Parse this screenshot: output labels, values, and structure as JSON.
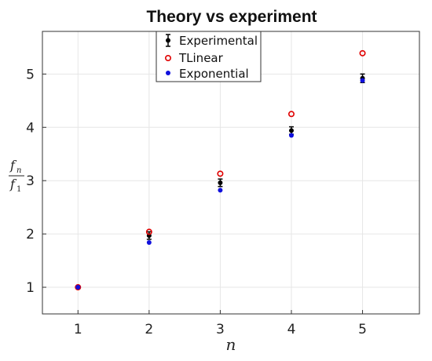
{
  "chart_data": {
    "type": "scatter",
    "title": "Theory vs experiment",
    "xlabel": "n",
    "ylabel": {
      "numerator": "f",
      "numerator_sub": "n",
      "denominator": "f",
      "denominator_sub": "1"
    },
    "xlim": [
      0.5,
      5.8
    ],
    "ylim": [
      0.5,
      5.8
    ],
    "xticks": [
      "1",
      "2",
      "3",
      "4",
      "5"
    ],
    "yticks": [
      "1",
      "2",
      "3",
      "4",
      "5"
    ],
    "grid": true,
    "legend_position": "top-center",
    "series": [
      {
        "name": "Experimental",
        "marker": "errorbar-dot",
        "color": "#000000",
        "x": [
          1,
          2,
          3,
          4,
          5
        ],
        "y": [
          1.0,
          1.97,
          2.96,
          3.94,
          4.92
        ],
        "err": [
          0.02,
          0.07,
          0.07,
          0.07,
          0.08
        ]
      },
      {
        "name": "TLinear",
        "marker": "open-circle",
        "color": "#e00000",
        "x": [
          1,
          2,
          3,
          4,
          5
        ],
        "y": [
          1.0,
          2.04,
          3.13,
          4.25,
          5.39
        ]
      },
      {
        "name": "Exponential",
        "marker": "filled-dot",
        "color": "#1010dd",
        "x": [
          1,
          2,
          3,
          4,
          5
        ],
        "y": [
          1.0,
          1.84,
          2.82,
          3.85,
          4.88
        ]
      }
    ]
  }
}
